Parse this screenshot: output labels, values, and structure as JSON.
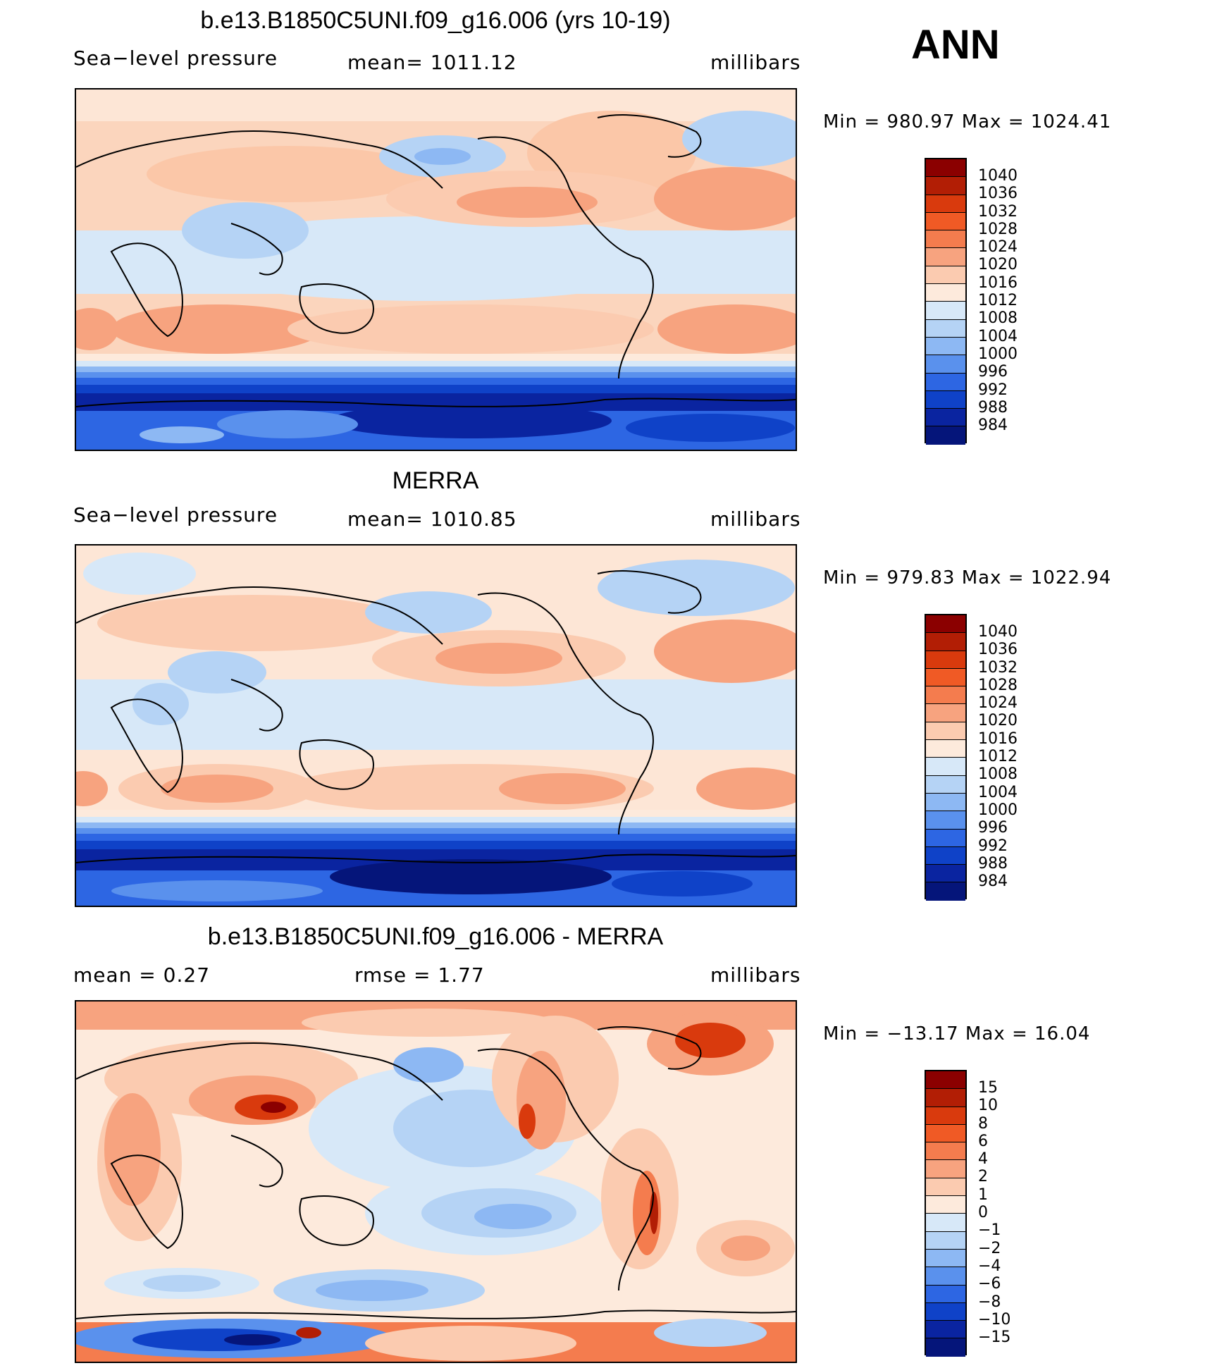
{
  "season": "ANN",
  "panels": [
    {
      "title": "b.e13.B1850C5UNI.f09_g16.006 (yrs 10-19)",
      "left_label": "Sea−level pressure",
      "center_label": "mean=  1011.12",
      "units": "millibars",
      "minmax": "Min  =  980.97  Max  =  1024.41",
      "colorbar": {
        "labels": [
          "1040",
          "1036",
          "1032",
          "1028",
          "1024",
          "1020",
          "1016",
          "1012",
          "1008",
          "1004",
          "1000",
          "996",
          "992",
          "988",
          "984"
        ],
        "colors": [
          "#8b0000",
          "#b21e05",
          "#d93a0d",
          "#f05a25",
          "#f47c4e",
          "#f7a37f",
          "#fbcbb0",
          "#fdeadc",
          "#d7e8f8",
          "#b5d3f5",
          "#8db8f3",
          "#5a91ed",
          "#2d66e3",
          "#0f42c8",
          "#0a24a0",
          "#05157a"
        ]
      }
    },
    {
      "title": "MERRA",
      "left_label": "Sea−level pressure",
      "center_label": "mean=  1010.85",
      "units": "millibars",
      "minmax": "Min  =  979.83  Max  =  1022.94",
      "colorbar": {
        "labels": [
          "1040",
          "1036",
          "1032",
          "1028",
          "1024",
          "1020",
          "1016",
          "1012",
          "1008",
          "1004",
          "1000",
          "996",
          "992",
          "988",
          "984"
        ],
        "colors": [
          "#8b0000",
          "#b21e05",
          "#d93a0d",
          "#f05a25",
          "#f47c4e",
          "#f7a37f",
          "#fbcbb0",
          "#fdeadc",
          "#d7e8f8",
          "#b5d3f5",
          "#8db8f3",
          "#5a91ed",
          "#2d66e3",
          "#0f42c8",
          "#0a24a0",
          "#05157a"
        ]
      }
    },
    {
      "title": "b.e13.B1850C5UNI.f09_g16.006 - MERRA",
      "left_label": "mean  =     0.27",
      "center_label": "rmse  =     1.77",
      "units": "millibars",
      "minmax": "Min  =  −13.17  Max  =    16.04",
      "colorbar": {
        "labels": [
          "15",
          "10",
          "8",
          "6",
          "4",
          "2",
          "1",
          "0",
          "−1",
          "−2",
          "−4",
          "−6",
          "−8",
          "−10",
          "−15"
        ],
        "colors": [
          "#8b0000",
          "#b21e05",
          "#d93a0d",
          "#f05a25",
          "#f47c4e",
          "#f7a37f",
          "#fbcbb0",
          "#fdeadc",
          "#d7e8f8",
          "#b5d3f5",
          "#8db8f3",
          "#5a91ed",
          "#2d66e3",
          "#0f42c8",
          "#0a24a0",
          "#05157a"
        ]
      }
    }
  ]
}
